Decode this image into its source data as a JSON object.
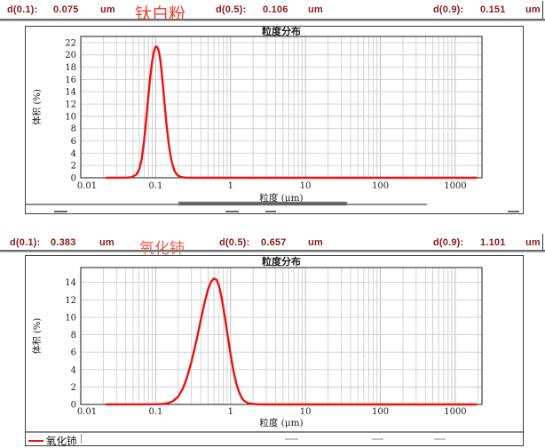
{
  "colors": {
    "curve": "#ee1111",
    "stats_text": "#8b1a1a",
    "sample_top_text": "#f03a2a",
    "sample_bottom_text": "#ec5e4d",
    "frame": "#3f3f3f",
    "rule": "#6e6e6e",
    "grid_minor": "#cfcfcf",
    "grid_major": "#b8b8b8"
  },
  "panels": [
    {
      "sample": "钛白粉",
      "stats": {
        "d01_label": "d(0.1):",
        "d01_value": "0.075",
        "d01_unit": "um",
        "d05_label": "d(0.5):",
        "d05_value": "0.106",
        "d05_unit": "um",
        "d09_label": "d(0.9):",
        "d09_value": "0.151",
        "d09_unit": "um"
      }
    },
    {
      "sample": "氧化铈",
      "stats": {
        "d01_label": "d(0.1):",
        "d01_value": "0.383",
        "d01_unit": "um",
        "d05_label": "d(0.5):",
        "d05_value": "0.657",
        "d05_unit": "um",
        "d09_label": "d(0.9):",
        "d09_value": "1.101",
        "d09_unit": "um"
      }
    }
  ],
  "chart_data": [
    {
      "type": "line",
      "title": "粒度分布",
      "xlabel": "粒度 (μm)",
      "ylabel": "体积 (%)",
      "x_scale": "log",
      "xlim": [
        0.01,
        2270
      ],
      "ylim": [
        0,
        23
      ],
      "x_tick_values": [
        0.01,
        0.1,
        1,
        10,
        100,
        1000
      ],
      "x_tick_labels": [
        "0.01",
        "0.1",
        "1",
        "10",
        "100",
        "1000"
      ],
      "y_tick_step": 2,
      "y_tick_max": 22,
      "grid": true,
      "legend_visible": false,
      "series": [
        {
          "name": "钛白粉",
          "color": "#ee1111",
          "points": [
            [
              0.022,
              0
            ],
            [
              0.04,
              0.02
            ],
            [
              0.048,
              0.1
            ],
            [
              0.055,
              0.5
            ],
            [
              0.06,
              1.3
            ],
            [
              0.065,
              3.0
            ],
            [
              0.07,
              6.0
            ],
            [
              0.075,
              9.6
            ],
            [
              0.08,
              13.4
            ],
            [
              0.085,
              16.6
            ],
            [
              0.09,
              19.0
            ],
            [
              0.095,
              20.6
            ],
            [
              0.1,
              21.35
            ],
            [
              0.105,
              21.3
            ],
            [
              0.11,
              20.6
            ],
            [
              0.115,
              19.3
            ],
            [
              0.12,
              17.3
            ],
            [
              0.125,
              15.0
            ],
            [
              0.13,
              12.7
            ],
            [
              0.14,
              8.5
            ],
            [
              0.15,
              5.3
            ],
            [
              0.16,
              3.2
            ],
            [
              0.17,
              1.9
            ],
            [
              0.18,
              1.05
            ],
            [
              0.19,
              0.6
            ],
            [
              0.2,
              0.32
            ],
            [
              0.22,
              0.12
            ],
            [
              0.25,
              0.03
            ],
            [
              0.3,
              0
            ],
            [
              0.5,
              0
            ],
            [
              1,
              0
            ],
            [
              10,
              0
            ],
            [
              100,
              0
            ],
            [
              1000,
              0
            ],
            [
              1900,
              0
            ]
          ]
        }
      ]
    },
    {
      "type": "line",
      "title": "粒度分布",
      "xlabel": "粒度 (μm)",
      "ylabel": "体积 (%)",
      "x_scale": "log",
      "xlim": [
        0.01,
        2270
      ],
      "ylim": [
        0,
        15.7
      ],
      "x_tick_values": [
        0.01,
        0.1,
        1,
        10,
        100,
        1000
      ],
      "x_tick_labels": [
        "0.01",
        "0.1",
        "1",
        "10",
        "100",
        "1000"
      ],
      "y_tick_step": 2,
      "y_tick_max": 14,
      "grid": true,
      "legend_visible": true,
      "series": [
        {
          "name": "氧化铈",
          "color": "#ee1111",
          "points": [
            [
              0.022,
              0
            ],
            [
              0.1,
              0.02
            ],
            [
              0.13,
              0.07
            ],
            [
              0.15,
              0.18
            ],
            [
              0.17,
              0.38
            ],
            [
              0.2,
              0.9
            ],
            [
              0.23,
              1.8
            ],
            [
              0.26,
              3.0
            ],
            [
              0.3,
              4.9
            ],
            [
              0.35,
              7.3
            ],
            [
              0.4,
              9.7
            ],
            [
              0.45,
              11.7
            ],
            [
              0.5,
              13.2
            ],
            [
              0.55,
              14.1
            ],
            [
              0.6,
              14.45
            ],
            [
              0.65,
              14.3
            ],
            [
              0.7,
              13.6
            ],
            [
              0.75,
              12.5
            ],
            [
              0.8,
              11.1
            ],
            [
              0.85,
              9.7
            ],
            [
              0.9,
              8.3
            ],
            [
              1.0,
              5.7
            ],
            [
              1.1,
              3.7
            ],
            [
              1.2,
              2.3
            ],
            [
              1.3,
              1.4
            ],
            [
              1.4,
              0.8
            ],
            [
              1.5,
              0.45
            ],
            [
              1.7,
              0.16
            ],
            [
              2.0,
              0.06
            ],
            [
              2.3,
              0.02
            ],
            [
              3,
              0
            ],
            [
              10,
              0
            ],
            [
              100,
              0
            ],
            [
              1000,
              0
            ],
            [
              1900,
              0
            ]
          ]
        }
      ]
    }
  ]
}
